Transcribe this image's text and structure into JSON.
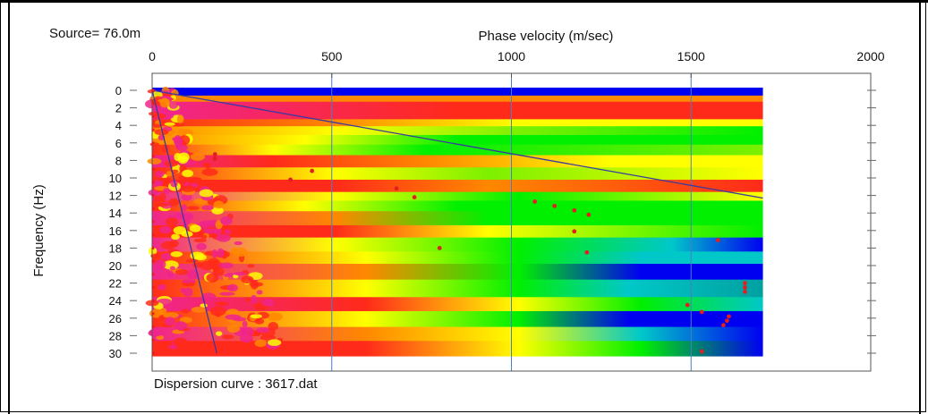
{
  "chart_data": {
    "type": "heatmap",
    "title": "Phase velocity (m/sec)",
    "source_label": "Source= 76.0m",
    "xlabel": "Phase velocity (m/sec)",
    "ylabel": "Frequency (Hz)",
    "footer": "Dispersion curve : 3617.dat",
    "xlim": [
      0,
      2000
    ],
    "ylim": [
      0,
      30
    ],
    "data_extent_x": [
      0,
      1700
    ],
    "x_ticks": [
      "0",
      "500",
      "1000",
      "1500",
      "2000"
    ],
    "x_tick_values": [
      0,
      500,
      1000,
      1500,
      2000
    ],
    "y_ticks": [
      "0",
      "2",
      "4",
      "6",
      "8",
      "10",
      "12",
      "14",
      "16",
      "18",
      "20",
      "22",
      "24",
      "26",
      "28",
      "30"
    ],
    "y_tick_values": [
      0,
      2,
      4,
      6,
      8,
      10,
      12,
      14,
      16,
      18,
      20,
      22,
      24,
      26,
      28,
      30
    ],
    "grid": "vertical at major x ticks",
    "colormap": [
      "#f0258c",
      "#ff2a1a",
      "#ff8800",
      "#ffff00",
      "#00f000",
      "#00c8c8",
      "#0000f0"
    ],
    "guide_lines": [
      {
        "name": "upper-guide",
        "points": [
          [
            0,
            0
          ],
          [
            1700,
            12.3
          ]
        ]
      },
      {
        "name": "lower-guide",
        "points": [
          [
            0,
            0
          ],
          [
            180,
            30
          ]
        ]
      }
    ],
    "series": [
      {
        "name": "",
        "color": "#e02020",
        "points": [
          [
            175,
            7.3
          ],
          [
            175,
            7.8
          ],
          [
            445,
            9.2
          ],
          [
            385,
            10.2
          ],
          [
            680,
            11.2
          ],
          [
            730,
            12.2
          ],
          [
            1065,
            12.7
          ],
          [
            1120,
            13.2
          ],
          [
            1175,
            13.7
          ],
          [
            1215,
            14.2
          ],
          [
            1175,
            16.1
          ],
          [
            800,
            18.0
          ],
          [
            1210,
            18.5
          ],
          [
            1575,
            17.1
          ],
          [
            1650,
            22.0
          ],
          [
            1650,
            22.5
          ],
          [
            1650,
            23.0
          ],
          [
            1490,
            24.5
          ],
          [
            1530,
            25.3
          ],
          [
            1605,
            25.8
          ],
          [
            1600,
            26.3
          ],
          [
            1590,
            26.8
          ],
          [
            1530,
            29.8
          ]
        ]
      }
    ],
    "bands": [
      {
        "f": 0.0,
        "h": 0.6,
        "profile": [
          [
            0,
            "#0000f0"
          ],
          [
            1,
            "#0000f0"
          ]
        ]
      },
      {
        "f": 0.6,
        "h": 0.7,
        "profile": [
          [
            0,
            "#ff8800"
          ],
          [
            1,
            "#ff8800"
          ]
        ]
      },
      {
        "f": 1.3,
        "h": 2.0,
        "profile": [
          [
            0,
            "#f0258c"
          ],
          [
            0.5,
            "#ff2a1a"
          ],
          [
            1,
            "#ff2a1a"
          ]
        ]
      },
      {
        "f": 3.3,
        "h": 0.8,
        "profile": [
          [
            0,
            "#ff2a1a"
          ],
          [
            0.3,
            "#ff8800"
          ],
          [
            0.6,
            "#ffff00"
          ],
          [
            1,
            "#ffff00"
          ]
        ]
      },
      {
        "f": 4.1,
        "h": 1.0,
        "profile": [
          [
            0,
            "#ff8800"
          ],
          [
            0.3,
            "#ffff00"
          ],
          [
            0.6,
            "#7cf000"
          ],
          [
            1,
            "#00f000"
          ]
        ]
      },
      {
        "f": 5.1,
        "h": 1.1,
        "profile": [
          [
            0,
            "#ff8800"
          ],
          [
            0.25,
            "#ffff00"
          ],
          [
            0.5,
            "#00f000"
          ],
          [
            1,
            "#00f000"
          ]
        ]
      },
      {
        "f": 6.2,
        "h": 1.2,
        "profile": [
          [
            0,
            "#ff2a1a"
          ],
          [
            0.2,
            "#ffff00"
          ],
          [
            0.45,
            "#00f000"
          ],
          [
            1,
            "#7cf000"
          ]
        ]
      },
      {
        "f": 7.4,
        "h": 1.4,
        "profile": [
          [
            0,
            "#f0258c"
          ],
          [
            0.2,
            "#ff2a1a"
          ],
          [
            0.45,
            "#ff8800"
          ],
          [
            0.75,
            "#ffff00"
          ],
          [
            1,
            "#ffff00"
          ]
        ]
      },
      {
        "f": 8.8,
        "h": 1.4,
        "profile": [
          [
            0,
            "#ff2a1a"
          ],
          [
            0.3,
            "#ffff00"
          ],
          [
            0.55,
            "#7cf000"
          ],
          [
            1,
            "#ffff00"
          ]
        ]
      },
      {
        "f": 10.2,
        "h": 1.4,
        "profile": [
          [
            0,
            "#ff2a1a"
          ],
          [
            0.3,
            "#ff2a1a"
          ],
          [
            0.55,
            "#ff8800"
          ],
          [
            1,
            "#ff2a1a"
          ]
        ]
      },
      {
        "f": 11.6,
        "h": 1.0,
        "profile": [
          [
            0,
            "#f0258c"
          ],
          [
            0.3,
            "#ffff00"
          ],
          [
            0.6,
            "#00f000"
          ],
          [
            1,
            "#ffff00"
          ]
        ]
      },
      {
        "f": 12.6,
        "h": 1.2,
        "profile": [
          [
            0,
            "#ff2a1a"
          ],
          [
            0.25,
            "#ffff00"
          ],
          [
            0.5,
            "#00f000"
          ],
          [
            1,
            "#00f000"
          ]
        ]
      },
      {
        "f": 13.8,
        "h": 1.6,
        "profile": [
          [
            0,
            "#f0258c"
          ],
          [
            0.3,
            "#ff8800"
          ],
          [
            0.55,
            "#00f000"
          ],
          [
            1,
            "#00f000"
          ]
        ]
      },
      {
        "f": 15.4,
        "h": 1.4,
        "profile": [
          [
            0,
            "#ff2a1a"
          ],
          [
            0.3,
            "#ff2a1a"
          ],
          [
            0.55,
            "#ffff00"
          ],
          [
            1,
            "#00f000"
          ]
        ]
      },
      {
        "f": 16.8,
        "h": 1.6,
        "profile": [
          [
            0,
            "#f0258c"
          ],
          [
            0.3,
            "#ffff00"
          ],
          [
            0.6,
            "#00f000"
          ],
          [
            0.85,
            "#00c8c8"
          ],
          [
            1,
            "#0000f0"
          ]
        ]
      },
      {
        "f": 18.4,
        "h": 1.4,
        "profile": [
          [
            0,
            "#ff2a1a"
          ],
          [
            0.35,
            "#ffff00"
          ],
          [
            0.6,
            "#00f000"
          ],
          [
            0.8,
            "#00c8c8"
          ],
          [
            1,
            "#00c8c8"
          ]
        ]
      },
      {
        "f": 19.8,
        "h": 1.8,
        "profile": [
          [
            0,
            "#f0258c"
          ],
          [
            0.35,
            "#ff8800"
          ],
          [
            0.6,
            "#00f000"
          ],
          [
            0.8,
            "#0000f0"
          ],
          [
            1,
            "#0000f0"
          ]
        ]
      },
      {
        "f": 21.6,
        "h": 2.0,
        "profile": [
          [
            0,
            "#ff2a1a"
          ],
          [
            0.35,
            "#ffff00"
          ],
          [
            0.6,
            "#00f000"
          ],
          [
            0.78,
            "#00c8c8"
          ],
          [
            1,
            "#00a0a0"
          ]
        ]
      },
      {
        "f": 23.6,
        "h": 1.6,
        "profile": [
          [
            0,
            "#f0258c"
          ],
          [
            0.35,
            "#ff2a1a"
          ],
          [
            0.6,
            "#ffff00"
          ],
          [
            0.8,
            "#00f000"
          ],
          [
            1,
            "#00c8c8"
          ]
        ]
      },
      {
        "f": 25.2,
        "h": 1.8,
        "profile": [
          [
            0,
            "#ff2a1a"
          ],
          [
            0.35,
            "#ffff00"
          ],
          [
            0.6,
            "#00f000"
          ],
          [
            0.78,
            "#0000f0"
          ],
          [
            1,
            "#0000f0"
          ]
        ]
      },
      {
        "f": 27.0,
        "h": 1.6,
        "profile": [
          [
            0,
            "#f0258c"
          ],
          [
            0.35,
            "#ff8800"
          ],
          [
            0.6,
            "#ffff00"
          ],
          [
            0.8,
            "#00c8c8"
          ],
          [
            1,
            "#0000f0"
          ]
        ]
      },
      {
        "f": 28.6,
        "h": 1.4,
        "profile": [
          [
            0,
            "#ff2a1a"
          ],
          [
            0.35,
            "#ff2a1a"
          ],
          [
            0.6,
            "#ffff00"
          ],
          [
            0.8,
            "#00f000"
          ],
          [
            1,
            "#0000f0"
          ]
        ]
      }
    ]
  }
}
